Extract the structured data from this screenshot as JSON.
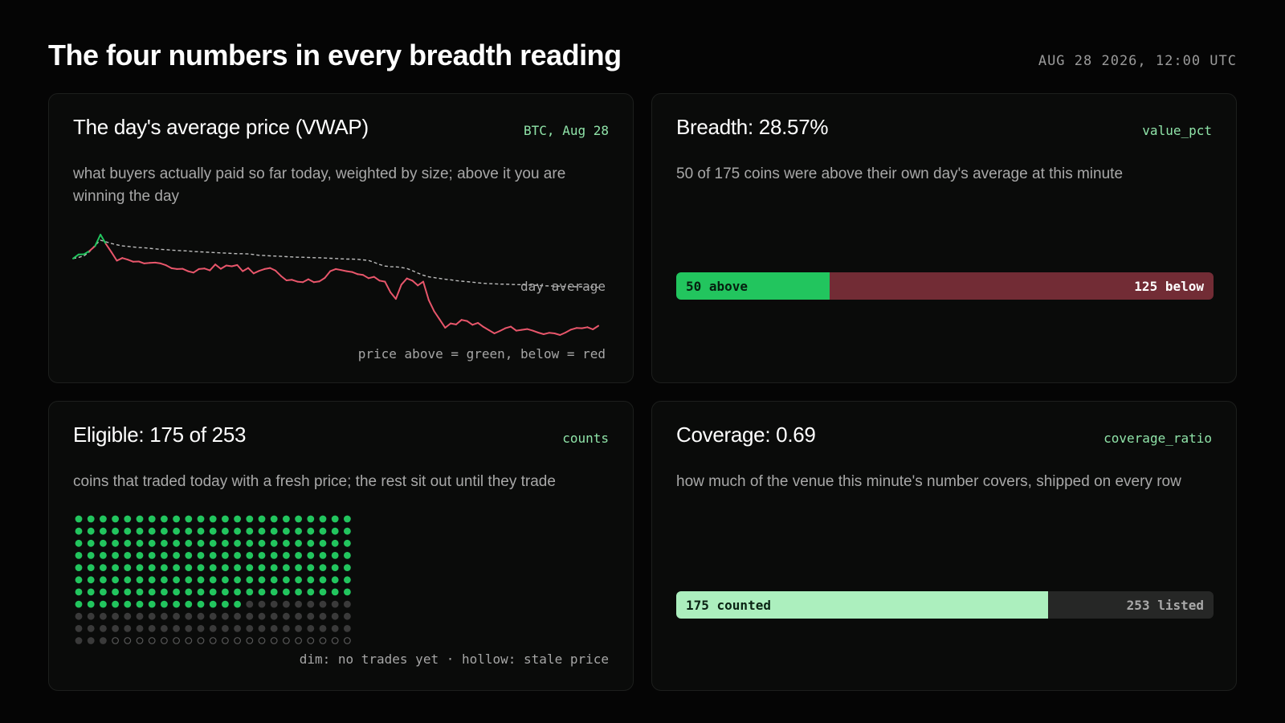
{
  "header": {
    "title": "The four numbers in every breadth reading",
    "timestamp": "AUG 28 2026, 12:00 UTC"
  },
  "colors": {
    "above": "#22c55e",
    "below": "#e8566b",
    "below_bar": "#722c35",
    "accent_tag": "#8fe3a8",
    "coverage_fill": "#acefbe",
    "dim_dot": "#3a3a3a"
  },
  "cards": {
    "vwap": {
      "title": "The day's average price (VWAP)",
      "tag": "BTC, Aug 28",
      "description": "what buyers actually paid so far today, weighted by size; above it you are winning the day",
      "line_label": "day average",
      "note": "price above = green, below = red"
    },
    "breadth": {
      "title": "Breadth: 28.57%",
      "tag": "value_pct",
      "description": "50 of 175 coins were above their own day's average at this minute",
      "above_label": "50 above",
      "below_label": "125 below"
    },
    "eligible": {
      "title": "Eligible: 175 of 253",
      "tag": "counts",
      "description": "coins that traded today with a fresh price; the rest sit out until they trade",
      "note": "dim: no trades yet · hollow: stale price"
    },
    "coverage": {
      "title": "Coverage: 0.69",
      "tag": "coverage_ratio",
      "description": "how much of the venue this minute's number covers, shipped on every row",
      "counted_label": "175 counted",
      "listed_label": "253 listed"
    }
  },
  "chart_data": [
    {
      "type": "line",
      "series": [
        {
          "values": [
            100,
            101.5,
            101.6,
            102.8,
            104.6,
            108.9,
            105.4,
            102.4,
            99.2,
            100.2,
            99.6,
            98.8,
            98.9,
            98.2,
            98.4,
            98.5,
            98.2,
            97.5,
            96.4,
            96.1,
            96.2,
            95.3,
            94.8,
            96.1,
            96.3,
            95.6,
            97.8,
            96.2,
            97.4,
            97.1,
            97.6,
            95.3,
            96.5,
            94.5,
            95.4,
            96.1,
            96.5,
            95.5,
            93.5,
            91.9,
            92.1,
            91.4,
            91.2,
            92.3,
            91.2,
            91.5,
            92.8,
            95.3,
            96.1,
            95.7,
            95.3,
            95.0,
            94.2,
            93.9,
            92.7,
            93.2,
            91.8,
            91.4,
            87.5,
            85.0,
            90.3,
            92.6,
            91.8,
            90.0,
            91.4,
            84.6,
            80.4,
            77.4,
            74.3,
            75.9,
            75.5,
            77.2,
            76.8,
            75.4,
            76.1,
            74.6,
            73.4,
            72.2,
            73.1,
            74.1,
            74.7,
            73.2,
            73.5,
            73.8,
            73.2,
            72.5,
            71.9,
            72.4,
            72.2,
            71.6,
            72.5,
            73.6,
            74.2,
            74.1,
            74.5,
            73.7,
            75.0
          ]
        },
        {
          "name": "day average",
          "values": [
            100,
            100.4,
            101.0,
            102.5,
            104.9,
            106.8,
            106.2,
            105.6,
            105.1,
            104.7,
            104.5,
            104.3,
            104.1,
            104.0,
            103.8,
            103.6,
            103.4,
            103.3,
            103.1,
            103.0,
            102.9,
            102.8,
            102.6,
            102.5,
            102.4,
            102.3,
            102.2,
            102.1,
            102.0,
            101.9,
            101.8,
            101.8,
            101.7,
            101.5,
            101.2,
            101.1,
            101.0,
            100.9,
            100.8,
            100.7,
            100.6,
            100.5,
            100.5,
            100.4,
            100.3,
            100.3,
            100.2,
            100.1,
            100.0,
            99.9,
            99.8,
            99.8,
            99.7,
            99.5,
            99.3,
            98.6,
            97.8,
            97.2,
            97.0,
            96.9,
            96.7,
            96.3,
            95.5,
            94.6,
            93.8,
            93.2,
            92.9,
            92.6,
            92.3,
            92.1,
            91.8,
            91.6,
            91.4,
            91.2,
            91.0,
            90.8,
            90.7,
            90.6,
            90.5,
            90.5,
            90.4,
            90.3,
            90.3,
            90.2,
            90.1,
            90.0,
            89.9,
            89.8,
            89.8,
            89.7,
            89.6,
            89.6,
            89.5,
            89.5,
            89.4,
            89.4,
            89.3
          ]
        }
      ],
      "color_rule": "price above = green, below = red"
    },
    {
      "type": "bar",
      "orientation": "horizontal-stacked",
      "categories": [
        "above",
        "below"
      ],
      "values": [
        50,
        125
      ],
      "total": 175
    },
    {
      "type": "dot-grid",
      "columns": 23,
      "rows": 11,
      "total": 253,
      "eligible": 175,
      "no_trades": 58,
      "stale": 20
    },
    {
      "type": "bar",
      "orientation": "horizontal-stacked",
      "categories": [
        "counted",
        "listed"
      ],
      "values": [
        175,
        253
      ],
      "ratio": 0.69
    }
  ]
}
